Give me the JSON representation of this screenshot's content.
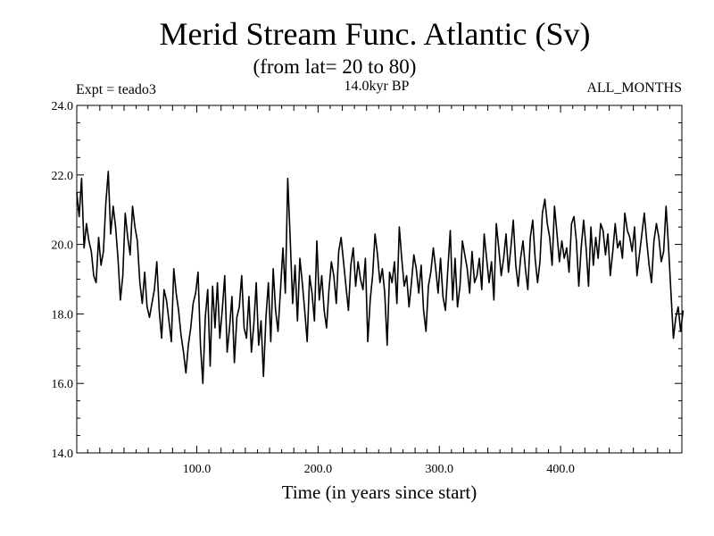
{
  "chart_data": {
    "type": "line",
    "title": "Merid Stream Func. Atlantic (Sv)",
    "subtitle": "(from lat= 20 to 80)",
    "expt_label": "Expt = teado3",
    "period_label": "14.0kyr BP",
    "months_label": "ALL_MONTHS",
    "xlabel": "Time (in years since start)",
    "ylabel": "",
    "xlim": [
      1,
      500
    ],
    "ylim": [
      14.0,
      24.0
    ],
    "grid": false,
    "x_ticks": [
      100,
      200,
      300,
      400
    ],
    "x_tick_labels": [
      "100.0",
      "200.0",
      "300.0",
      "400.0"
    ],
    "y_ticks": [
      14,
      16,
      18,
      20,
      22,
      24
    ],
    "y_tick_labels": [
      "14.0",
      "16.0",
      "18.0",
      "20.0",
      "22.0",
      "24.0"
    ],
    "series": [
      {
        "name": "Merid Stream Func. Atlantic",
        "x_start": 1,
        "x_step": 2,
        "values": [
          21.5,
          20.8,
          21.9,
          19.9,
          20.6,
          20.1,
          19.8,
          19.1,
          18.9,
          20.2,
          19.4,
          19.8,
          21.2,
          22.1,
          20.3,
          21.1,
          20.5,
          19.6,
          18.4,
          19.1,
          20.9,
          20.2,
          19.7,
          21.1,
          20.5,
          20.1,
          18.9,
          18.3,
          19.2,
          18.2,
          17.9,
          18.3,
          18.7,
          19.5,
          18.1,
          17.3,
          18.7,
          18.4,
          17.8,
          17.2,
          19.3,
          18.6,
          18.1,
          17.4,
          16.9,
          16.3,
          17.1,
          17.6,
          18.3,
          18.6,
          19.2,
          17.1,
          16.0,
          17.9,
          18.7,
          16.5,
          18.8,
          17.6,
          18.9,
          17.3,
          18.1,
          19.1,
          16.9,
          17.6,
          18.5,
          16.6,
          17.9,
          18.2,
          19.1,
          17.6,
          17.3,
          18.5,
          16.9,
          17.7,
          18.9,
          17.1,
          17.8,
          16.2,
          17.9,
          18.9,
          17.2,
          19.3,
          18.1,
          17.5,
          18.7,
          19.9,
          18.6,
          21.9,
          20.2,
          18.3,
          19.4,
          17.8,
          19.6,
          18.9,
          18.1,
          17.2,
          19.1,
          18.6,
          17.8,
          20.1,
          18.4,
          19.1,
          18.1,
          17.6,
          18.7,
          19.5,
          19.1,
          18.3,
          19.8,
          20.2,
          19.5,
          18.8,
          18.1,
          19.4,
          19.9,
          18.8,
          19.5,
          19.0,
          18.7,
          19.6,
          17.2,
          18.4,
          19.1,
          20.3,
          19.7,
          18.9,
          19.3,
          18.6,
          17.1,
          19.2,
          18.9,
          19.5,
          18.3,
          20.5,
          19.6,
          18.8,
          19.1,
          18.2,
          18.9,
          19.7,
          19.3,
          18.6,
          19.4,
          18.1,
          17.5,
          18.8,
          19.2,
          19.9,
          19.3,
          18.6,
          19.6,
          18.5,
          18.1,
          19.3,
          20.4,
          18.4,
          19.6,
          18.2,
          18.8,
          20.1,
          19.7,
          19.3,
          18.6,
          19.8,
          18.9,
          19.1,
          19.6,
          18.7,
          20.3,
          19.6,
          18.9,
          19.5,
          18.4,
          20.6,
          19.9,
          19.1,
          19.6,
          20.3,
          19.2,
          19.9,
          20.7,
          19.4,
          18.8,
          19.6,
          20.1,
          19.3,
          18.7,
          20.2,
          20.7,
          19.6,
          18.9,
          19.5,
          20.9,
          21.3,
          20.6,
          20.2,
          19.4,
          21.1,
          20.3,
          19.5,
          20.1,
          19.6,
          19.9,
          19.2,
          20.6,
          20.8,
          20.1,
          18.8,
          19.9,
          20.7,
          19.9,
          18.8,
          20.5,
          19.4,
          20.2,
          19.6,
          20.6,
          20.4,
          19.7,
          20.3,
          19.1,
          19.8,
          20.6,
          19.9,
          20.1,
          19.6,
          20.9,
          20.4,
          20.2,
          19.8,
          20.5,
          19.1,
          19.7,
          20.3,
          20.9,
          20.1,
          19.4,
          18.9,
          20.1,
          20.6,
          20.2,
          19.5,
          19.8,
          21.1,
          19.9,
          18.6,
          17.3,
          17.9,
          18.2,
          17.5,
          18.1
        ]
      }
    ]
  }
}
